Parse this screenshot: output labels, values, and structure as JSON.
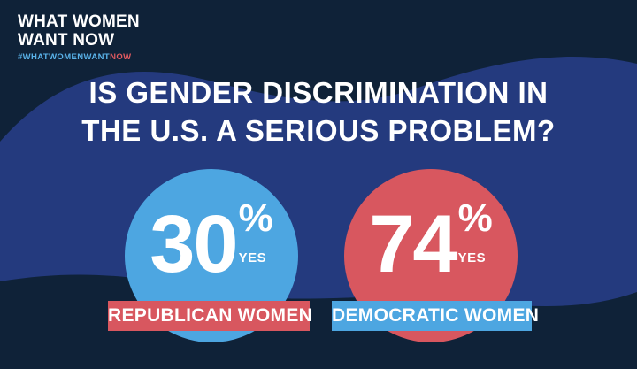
{
  "brand": {
    "line1": "WHAT WOMEN",
    "line2": "WANT NOW",
    "hashtag_main": "#WHATWOMENWANT",
    "hashtag_accent": "NOW"
  },
  "question": {
    "line1": "IS GENDER DISCRIMINATION IN",
    "line2": "THE U.S. A SERIOUS PROBLEM?"
  },
  "results": [
    {
      "group": "REPUBLICAN WOMEN",
      "value": "30",
      "percent": "%",
      "answer": "YES",
      "bubble_color": "#4da6e1",
      "label_color": "#d8575f"
    },
    {
      "group": "DEMOCRATIC WOMEN",
      "value": "74",
      "percent": "%",
      "answer": "YES",
      "bubble_color": "#d8575f",
      "label_color": "#4da6e1"
    }
  ],
  "colors": {
    "background_dark": "#0f2238",
    "wave_blue": "#243a7e",
    "accent_blue": "#4da6e1",
    "accent_red": "#d8575f"
  }
}
